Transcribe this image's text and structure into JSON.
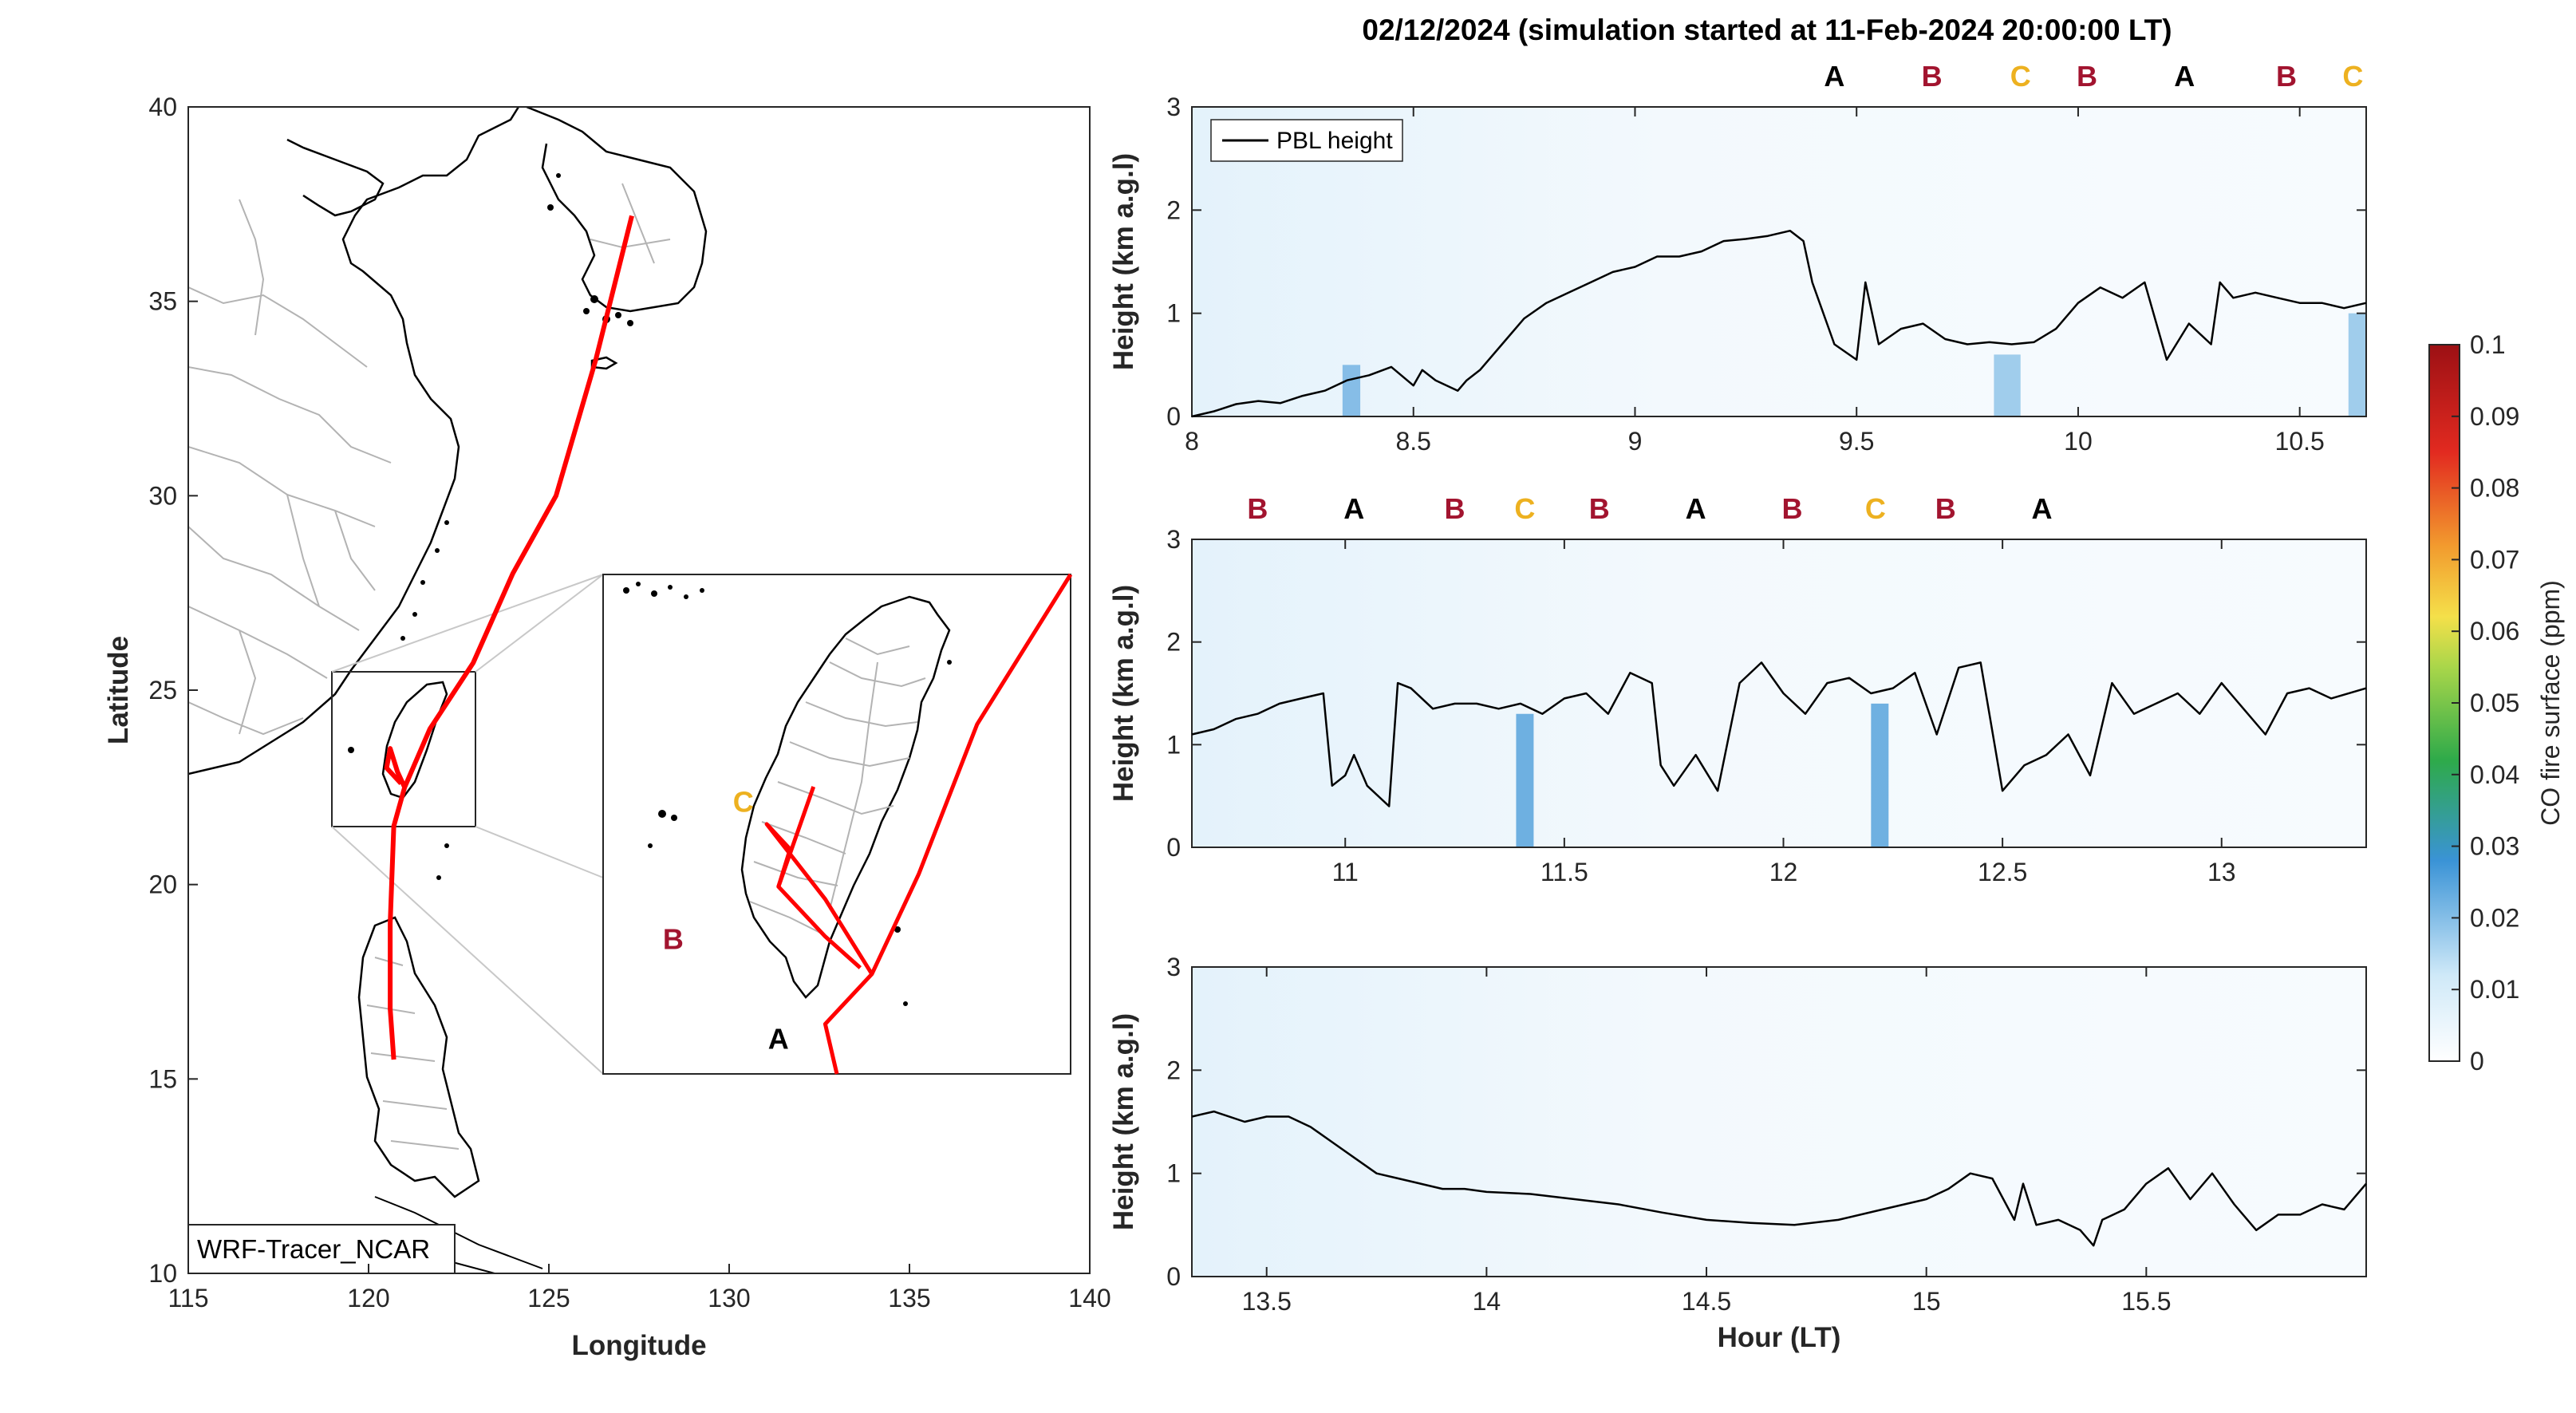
{
  "title": "02/12/2024 (simulation started at 11-Feb-2024 20:00:00 LT)",
  "colors": {
    "track": "#ff0000",
    "pbl": "#000000",
    "label_A": "#000000",
    "label_B": "#a2142f",
    "label_C": "#edb120",
    "land_outline": "#000000",
    "admin_border": "#b0b0b0",
    "frame": "#262626"
  },
  "map": {
    "xlabel": "Longitude",
    "ylabel": "Latitude",
    "xlim": [
      115,
      140
    ],
    "ylim": [
      10,
      40
    ],
    "xticks": [
      "115",
      "120",
      "125",
      "130",
      "135",
      "140"
    ],
    "yticks": [
      "10",
      "15",
      "20",
      "25",
      "30",
      "35",
      "40"
    ],
    "model_label": "WRF-Tracer_NCAR",
    "inset_region": {
      "lon": [
        119,
        123
      ],
      "lat": [
        21.5,
        25.5
      ]
    },
    "track": [
      [
        127.3,
        37.2
      ],
      [
        126.3,
        33.5
      ],
      [
        125.2,
        30.0
      ],
      [
        124.0,
        28.0
      ],
      [
        122.9,
        25.7
      ],
      [
        121.7,
        24.0
      ],
      [
        121.0,
        22.5
      ],
      [
        120.7,
        21.5
      ],
      [
        120.6,
        19.0
      ],
      [
        120.6,
        16.8
      ],
      [
        120.7,
        15.5
      ]
    ],
    "track_branch": [
      [
        121.0,
        22.5
      ],
      [
        120.8,
        22.9
      ],
      [
        120.6,
        23.5
      ],
      [
        120.5,
        23.0
      ],
      [
        120.9,
        22.6
      ]
    ],
    "inset_labels": [
      {
        "text": "C",
        "lon": 120.2,
        "lat": 23.6,
        "class": "C"
      },
      {
        "text": "B",
        "lon": 119.6,
        "lat": 22.5,
        "class": "B"
      },
      {
        "text": "A",
        "lon": 120.5,
        "lat": 21.7,
        "class": "A"
      }
    ]
  },
  "colorbar": {
    "label": "CO fire surface (ppm)",
    "ticks": [
      "0",
      "0.01",
      "0.02",
      "0.03",
      "0.04",
      "0.05",
      "0.06",
      "0.07",
      "0.08",
      "0.09",
      "0.1"
    ]
  },
  "chart_data": [
    {
      "type": "line",
      "ylabel": "Height (km a.g.l)",
      "xlim": [
        8,
        10.65
      ],
      "ylim": [
        0,
        3
      ],
      "xticks": [
        "8",
        "8.5",
        "9",
        "9.5",
        "10",
        "10.5"
      ],
      "yticks": [
        "0",
        "1",
        "2",
        "3"
      ],
      "legend": "PBL height",
      "segment_labels": [
        {
          "text": "A",
          "x": 9.45,
          "class": "A"
        },
        {
          "text": "B",
          "x": 9.67,
          "class": "B"
        },
        {
          "text": "C",
          "x": 9.87,
          "class": "C"
        },
        {
          "text": "B",
          "x": 10.02,
          "class": "B"
        },
        {
          "text": "A",
          "x": 10.24,
          "class": "A"
        },
        {
          "text": "B",
          "x": 10.47,
          "class": "B"
        },
        {
          "text": "C",
          "x": 10.62,
          "class": "C"
        }
      ],
      "co_columns": [
        {
          "x": 8.36,
          "width": 0.04,
          "top": 0.5,
          "value": 0.02
        },
        {
          "x": 9.84,
          "width": 0.06,
          "top": 0.6,
          "value": 0.015
        },
        {
          "x": 10.63,
          "width": 0.04,
          "top": 1.0,
          "value": 0.015
        }
      ],
      "series": [
        {
          "name": "PBL height",
          "x": [
            8,
            8.05,
            8.1,
            8.15,
            8.2,
            8.25,
            8.3,
            8.35,
            8.4,
            8.45,
            8.5,
            8.52,
            8.55,
            8.6,
            8.62,
            8.65,
            8.7,
            8.75,
            8.8,
            8.85,
            8.9,
            8.95,
            9.0,
            9.05,
            9.1,
            9.15,
            9.2,
            9.25,
            9.3,
            9.35,
            9.38,
            9.4,
            9.45,
            9.5,
            9.52,
            9.55,
            9.6,
            9.65,
            9.7,
            9.75,
            9.8,
            9.85,
            9.9,
            9.95,
            10.0,
            10.05,
            10.1,
            10.15,
            10.2,
            10.25,
            10.3,
            10.32,
            10.35,
            10.4,
            10.45,
            10.5,
            10.55,
            10.6,
            10.65
          ],
          "y": [
            0.0,
            0.05,
            0.12,
            0.15,
            0.13,
            0.2,
            0.25,
            0.35,
            0.4,
            0.48,
            0.3,
            0.45,
            0.35,
            0.25,
            0.35,
            0.45,
            0.7,
            0.95,
            1.1,
            1.2,
            1.3,
            1.4,
            1.45,
            1.55,
            1.55,
            1.6,
            1.7,
            1.72,
            1.75,
            1.8,
            1.7,
            1.3,
            0.7,
            0.55,
            1.3,
            0.7,
            0.85,
            0.9,
            0.75,
            0.7,
            0.72,
            0.7,
            0.72,
            0.85,
            1.1,
            1.25,
            1.15,
            1.3,
            0.55,
            0.9,
            0.7,
            1.3,
            1.15,
            1.2,
            1.15,
            1.1,
            1.1,
            1.05,
            1.1
          ]
        }
      ]
    },
    {
      "type": "line",
      "ylabel": "Height (km a.g.l)",
      "xlim": [
        10.65,
        13.33
      ],
      "ylim": [
        0,
        3
      ],
      "xticks": [
        "11",
        "11.5",
        "12",
        "12.5",
        "13"
      ],
      "yticks": [
        "0",
        "1",
        "2",
        "3"
      ],
      "segment_labels": [
        {
          "text": "B",
          "x": 10.8,
          "class": "B"
        },
        {
          "text": "A",
          "x": 11.02,
          "class": "A"
        },
        {
          "text": "B",
          "x": 11.25,
          "class": "B"
        },
        {
          "text": "C",
          "x": 11.41,
          "class": "C"
        },
        {
          "text": "B",
          "x": 11.58,
          "class": "B"
        },
        {
          "text": "A",
          "x": 11.8,
          "class": "A"
        },
        {
          "text": "B",
          "x": 12.02,
          "class": "B"
        },
        {
          "text": "C",
          "x": 12.21,
          "class": "C"
        },
        {
          "text": "B",
          "x": 12.37,
          "class": "B"
        },
        {
          "text": "A",
          "x": 12.59,
          "class": "A"
        }
      ],
      "co_columns": [
        {
          "x": 11.41,
          "width": 0.04,
          "top": 1.3,
          "value": 0.025
        },
        {
          "x": 12.22,
          "width": 0.04,
          "top": 1.4,
          "value": 0.025
        }
      ],
      "series": [
        {
          "name": "PBL height",
          "x": [
            10.65,
            10.7,
            10.75,
            10.8,
            10.85,
            10.9,
            10.95,
            10.97,
            11.0,
            11.02,
            11.05,
            11.1,
            11.12,
            11.15,
            11.2,
            11.25,
            11.3,
            11.35,
            11.4,
            11.45,
            11.5,
            11.55,
            11.6,
            11.65,
            11.7,
            11.72,
            11.75,
            11.8,
            11.85,
            11.9,
            11.95,
            12.0,
            12.05,
            12.1,
            12.15,
            12.2,
            12.25,
            12.3,
            12.35,
            12.4,
            12.45,
            12.5,
            12.55,
            12.6,
            12.65,
            12.7,
            12.75,
            12.8,
            12.85,
            12.9,
            12.95,
            13.0,
            13.05,
            13.1,
            13.15,
            13.2,
            13.25,
            13.33
          ],
          "y": [
            1.1,
            1.15,
            1.25,
            1.3,
            1.4,
            1.45,
            1.5,
            0.6,
            0.7,
            0.9,
            0.6,
            0.4,
            1.6,
            1.55,
            1.35,
            1.4,
            1.4,
            1.35,
            1.4,
            1.3,
            1.45,
            1.5,
            1.3,
            1.7,
            1.6,
            0.8,
            0.6,
            0.9,
            0.55,
            1.6,
            1.8,
            1.5,
            1.3,
            1.6,
            1.65,
            1.5,
            1.55,
            1.7,
            1.1,
            1.75,
            1.8,
            0.55,
            0.8,
            0.9,
            1.1,
            0.7,
            1.6,
            1.3,
            1.4,
            1.5,
            1.3,
            1.6,
            1.35,
            1.1,
            1.5,
            1.55,
            1.45,
            1.55
          ]
        }
      ]
    },
    {
      "type": "line",
      "xlabel": "Hour (LT)",
      "ylabel": "Height (km a.g.l)",
      "xlim": [
        13.33,
        16.0
      ],
      "ylim": [
        0,
        3
      ],
      "xticks": [
        "13.5",
        "14",
        "14.5",
        "15",
        "15.5"
      ],
      "yticks": [
        "0",
        "1",
        "2",
        "3"
      ],
      "co_columns": [],
      "series": [
        {
          "name": "PBL height",
          "x": [
            13.33,
            13.38,
            13.45,
            13.5,
            13.55,
            13.6,
            13.65,
            13.7,
            13.75,
            13.8,
            13.85,
            13.9,
            13.95,
            14.0,
            14.1,
            14.2,
            14.3,
            14.4,
            14.5,
            14.6,
            14.7,
            14.8,
            14.9,
            15.0,
            15.05,
            15.1,
            15.15,
            15.2,
            15.22,
            15.25,
            15.3,
            15.35,
            15.38,
            15.4,
            15.45,
            15.5,
            15.55,
            15.6,
            15.65,
            15.7,
            15.75,
            15.8,
            15.85,
            15.9,
            15.95,
            16.0
          ],
          "y": [
            1.55,
            1.6,
            1.5,
            1.55,
            1.55,
            1.45,
            1.3,
            1.15,
            1.0,
            0.95,
            0.9,
            0.85,
            0.85,
            0.82,
            0.8,
            0.75,
            0.7,
            0.62,
            0.55,
            0.52,
            0.5,
            0.55,
            0.65,
            0.75,
            0.85,
            1.0,
            0.95,
            0.55,
            0.9,
            0.5,
            0.55,
            0.45,
            0.3,
            0.55,
            0.65,
            0.9,
            1.05,
            0.75,
            1.0,
            0.7,
            0.45,
            0.6,
            0.6,
            0.7,
            0.65,
            0.9
          ]
        }
      ]
    }
  ]
}
